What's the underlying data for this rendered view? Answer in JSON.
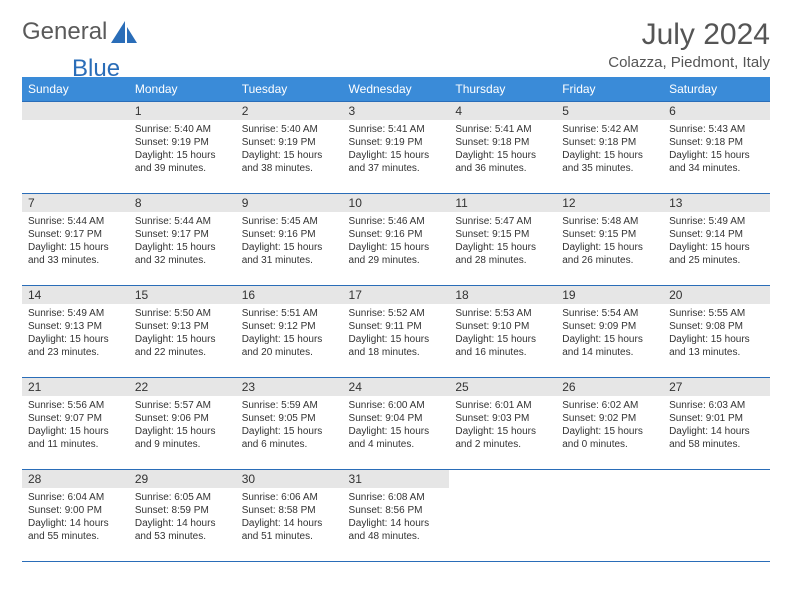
{
  "brand": {
    "general": "General",
    "blue": "Blue"
  },
  "title": {
    "month": "July 2024",
    "location": "Colazza, Piedmont, Italy"
  },
  "style": {
    "header_bg": "#3a8bd8",
    "border_color": "#2a6db8",
    "daynum_bg": "#e6e6e6",
    "text_color": "#333333"
  },
  "weekdays": [
    "Sunday",
    "Monday",
    "Tuesday",
    "Wednesday",
    "Thursday",
    "Friday",
    "Saturday"
  ],
  "weeks": [
    [
      null,
      {
        "n": "1",
        "sr": "Sunrise: 5:40 AM",
        "ss": "Sunset: 9:19 PM",
        "d1": "Daylight: 15 hours",
        "d2": "and 39 minutes."
      },
      {
        "n": "2",
        "sr": "Sunrise: 5:40 AM",
        "ss": "Sunset: 9:19 PM",
        "d1": "Daylight: 15 hours",
        "d2": "and 38 minutes."
      },
      {
        "n": "3",
        "sr": "Sunrise: 5:41 AM",
        "ss": "Sunset: 9:19 PM",
        "d1": "Daylight: 15 hours",
        "d2": "and 37 minutes."
      },
      {
        "n": "4",
        "sr": "Sunrise: 5:41 AM",
        "ss": "Sunset: 9:18 PM",
        "d1": "Daylight: 15 hours",
        "d2": "and 36 minutes."
      },
      {
        "n": "5",
        "sr": "Sunrise: 5:42 AM",
        "ss": "Sunset: 9:18 PM",
        "d1": "Daylight: 15 hours",
        "d2": "and 35 minutes."
      },
      {
        "n": "6",
        "sr": "Sunrise: 5:43 AM",
        "ss": "Sunset: 9:18 PM",
        "d1": "Daylight: 15 hours",
        "d2": "and 34 minutes."
      }
    ],
    [
      {
        "n": "7",
        "sr": "Sunrise: 5:44 AM",
        "ss": "Sunset: 9:17 PM",
        "d1": "Daylight: 15 hours",
        "d2": "and 33 minutes."
      },
      {
        "n": "8",
        "sr": "Sunrise: 5:44 AM",
        "ss": "Sunset: 9:17 PM",
        "d1": "Daylight: 15 hours",
        "d2": "and 32 minutes."
      },
      {
        "n": "9",
        "sr": "Sunrise: 5:45 AM",
        "ss": "Sunset: 9:16 PM",
        "d1": "Daylight: 15 hours",
        "d2": "and 31 minutes."
      },
      {
        "n": "10",
        "sr": "Sunrise: 5:46 AM",
        "ss": "Sunset: 9:16 PM",
        "d1": "Daylight: 15 hours",
        "d2": "and 29 minutes."
      },
      {
        "n": "11",
        "sr": "Sunrise: 5:47 AM",
        "ss": "Sunset: 9:15 PM",
        "d1": "Daylight: 15 hours",
        "d2": "and 28 minutes."
      },
      {
        "n": "12",
        "sr": "Sunrise: 5:48 AM",
        "ss": "Sunset: 9:15 PM",
        "d1": "Daylight: 15 hours",
        "d2": "and 26 minutes."
      },
      {
        "n": "13",
        "sr": "Sunrise: 5:49 AM",
        "ss": "Sunset: 9:14 PM",
        "d1": "Daylight: 15 hours",
        "d2": "and 25 minutes."
      }
    ],
    [
      {
        "n": "14",
        "sr": "Sunrise: 5:49 AM",
        "ss": "Sunset: 9:13 PM",
        "d1": "Daylight: 15 hours",
        "d2": "and 23 minutes."
      },
      {
        "n": "15",
        "sr": "Sunrise: 5:50 AM",
        "ss": "Sunset: 9:13 PM",
        "d1": "Daylight: 15 hours",
        "d2": "and 22 minutes."
      },
      {
        "n": "16",
        "sr": "Sunrise: 5:51 AM",
        "ss": "Sunset: 9:12 PM",
        "d1": "Daylight: 15 hours",
        "d2": "and 20 minutes."
      },
      {
        "n": "17",
        "sr": "Sunrise: 5:52 AM",
        "ss": "Sunset: 9:11 PM",
        "d1": "Daylight: 15 hours",
        "d2": "and 18 minutes."
      },
      {
        "n": "18",
        "sr": "Sunrise: 5:53 AM",
        "ss": "Sunset: 9:10 PM",
        "d1": "Daylight: 15 hours",
        "d2": "and 16 minutes."
      },
      {
        "n": "19",
        "sr": "Sunrise: 5:54 AM",
        "ss": "Sunset: 9:09 PM",
        "d1": "Daylight: 15 hours",
        "d2": "and 14 minutes."
      },
      {
        "n": "20",
        "sr": "Sunrise: 5:55 AM",
        "ss": "Sunset: 9:08 PM",
        "d1": "Daylight: 15 hours",
        "d2": "and 13 minutes."
      }
    ],
    [
      {
        "n": "21",
        "sr": "Sunrise: 5:56 AM",
        "ss": "Sunset: 9:07 PM",
        "d1": "Daylight: 15 hours",
        "d2": "and 11 minutes."
      },
      {
        "n": "22",
        "sr": "Sunrise: 5:57 AM",
        "ss": "Sunset: 9:06 PM",
        "d1": "Daylight: 15 hours",
        "d2": "and 9 minutes."
      },
      {
        "n": "23",
        "sr": "Sunrise: 5:59 AM",
        "ss": "Sunset: 9:05 PM",
        "d1": "Daylight: 15 hours",
        "d2": "and 6 minutes."
      },
      {
        "n": "24",
        "sr": "Sunrise: 6:00 AM",
        "ss": "Sunset: 9:04 PM",
        "d1": "Daylight: 15 hours",
        "d2": "and 4 minutes."
      },
      {
        "n": "25",
        "sr": "Sunrise: 6:01 AM",
        "ss": "Sunset: 9:03 PM",
        "d1": "Daylight: 15 hours",
        "d2": "and 2 minutes."
      },
      {
        "n": "26",
        "sr": "Sunrise: 6:02 AM",
        "ss": "Sunset: 9:02 PM",
        "d1": "Daylight: 15 hours",
        "d2": "and 0 minutes."
      },
      {
        "n": "27",
        "sr": "Sunrise: 6:03 AM",
        "ss": "Sunset: 9:01 PM",
        "d1": "Daylight: 14 hours",
        "d2": "and 58 minutes."
      }
    ],
    [
      {
        "n": "28",
        "sr": "Sunrise: 6:04 AM",
        "ss": "Sunset: 9:00 PM",
        "d1": "Daylight: 14 hours",
        "d2": "and 55 minutes."
      },
      {
        "n": "29",
        "sr": "Sunrise: 6:05 AM",
        "ss": "Sunset: 8:59 PM",
        "d1": "Daylight: 14 hours",
        "d2": "and 53 minutes."
      },
      {
        "n": "30",
        "sr": "Sunrise: 6:06 AM",
        "ss": "Sunset: 8:58 PM",
        "d1": "Daylight: 14 hours",
        "d2": "and 51 minutes."
      },
      {
        "n": "31",
        "sr": "Sunrise: 6:08 AM",
        "ss": "Sunset: 8:56 PM",
        "d1": "Daylight: 14 hours",
        "d2": "and 48 minutes."
      },
      null,
      null,
      null
    ]
  ]
}
